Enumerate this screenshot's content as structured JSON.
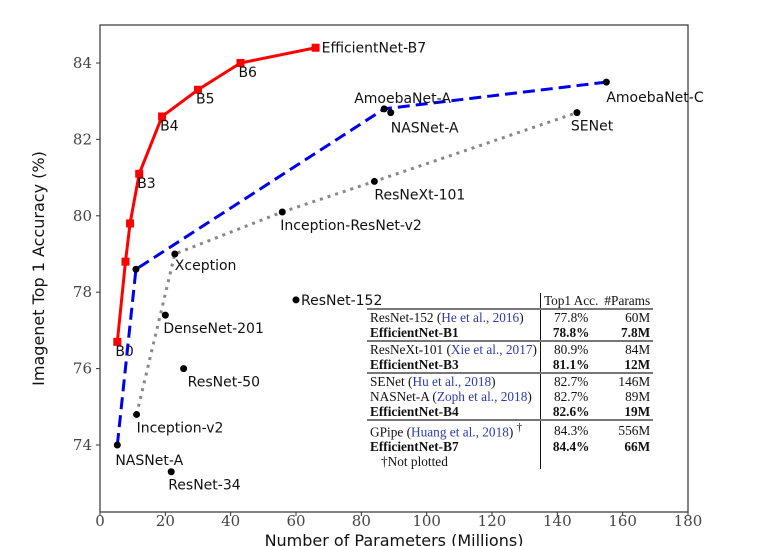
{
  "chart_data": {
    "type": "line",
    "xlabel": "Number of Parameters (Millions)",
    "ylabel": "Imagenet Top 1 Accuracy (%)",
    "xlim": [
      0,
      180
    ],
    "ylim": [
      72.3,
      84.95
    ],
    "xticks": [
      0,
      20,
      40,
      60,
      80,
      100,
      120,
      140,
      160,
      180
    ],
    "yticks": [
      74,
      76,
      78,
      80,
      82,
      84
    ],
    "grid": false,
    "series": [
      {
        "style": "solid",
        "color": "#ff0000",
        "marker": "square",
        "points": [
          {
            "x": 5.3,
            "y": 76.7,
            "label": "B0"
          },
          {
            "x": 7.8,
            "y": 78.8,
            "label": ""
          },
          {
            "x": 9.2,
            "y": 79.8,
            "label": ""
          },
          {
            "x": 12,
            "y": 81.1,
            "label": "B3"
          },
          {
            "x": 19,
            "y": 82.6,
            "label": "B4"
          },
          {
            "x": 30,
            "y": 83.3,
            "label": "B5"
          },
          {
            "x": 43,
            "y": 84.0,
            "label": "B6"
          },
          {
            "x": 66,
            "y": 84.4,
            "label": "EfficientNet-B7"
          }
        ]
      },
      {
        "style": "dashed",
        "color": "#0000ee",
        "marker": "circle",
        "points": [
          {
            "x": 5.3,
            "y": 74.0,
            "label": "NASNet-A"
          },
          {
            "x": 11,
            "y": 78.6,
            "label": ""
          },
          {
            "x": 87,
            "y": 82.8,
            "label": "AmoebaNet-A"
          },
          {
            "x": 155,
            "y": 83.5,
            "label": "AmoebaNet-C"
          }
        ]
      },
      {
        "style": "dotted",
        "color": "#888888",
        "marker": "circle",
        "points": [
          {
            "x": 11.2,
            "y": 74.8,
            "label": "Inception-v2"
          },
          {
            "x": 22.9,
            "y": 79.0,
            "label": "Xception"
          },
          {
            "x": 55.8,
            "y": 80.1,
            "label": "Inception-ResNet-v2"
          },
          {
            "x": 84,
            "y": 80.9,
            "label": "ResNeXt-101"
          },
          {
            "x": 146,
            "y": 82.7,
            "label": "SENet"
          }
        ]
      },
      {
        "style": "none",
        "color": "#000000",
        "marker": "circle",
        "points": [
          {
            "x": 89,
            "y": 82.7,
            "label": "NASNet-A"
          },
          {
            "x": 20,
            "y": 77.4,
            "label": "DenseNet-201"
          },
          {
            "x": 25.6,
            "y": 76.0,
            "label": "ResNet-50"
          },
          {
            "x": 60,
            "y": 77.8,
            "label": "ResNet-152"
          },
          {
            "x": 21.8,
            "y": 73.3,
            "label": "ResNet-34"
          }
        ]
      }
    ],
    "table": {
      "headers": [
        "",
        "Top1 Acc.",
        "#Params"
      ],
      "groups": [
        [
          {
            "model": "ResNet-152",
            "cite": "He et al., 2016",
            "acc": "77.8%",
            "params": "60M",
            "bold": false
          },
          {
            "model": "EfficientNet-B1",
            "cite": "",
            "acc": "78.8%",
            "params": "7.8M",
            "bold": true
          }
        ],
        [
          {
            "model": "ResNeXt-101",
            "cite": "Xie et al., 2017",
            "acc": "80.9%",
            "params": "84M",
            "bold": false
          },
          {
            "model": "EfficientNet-B3",
            "cite": "",
            "acc": "81.1%",
            "params": "12M",
            "bold": true
          }
        ],
        [
          {
            "model": "SENet",
            "cite": "Hu et al., 2018",
            "acc": "82.7%",
            "params": "146M",
            "bold": false
          },
          {
            "model": "NASNet-A",
            "cite": "Zoph et al., 2018",
            "acc": "82.7%",
            "params": "89M",
            "bold": false
          },
          {
            "model": "EfficientNet-B4",
            "cite": "",
            "acc": "82.6%",
            "params": "19M",
            "bold": true
          }
        ],
        [
          {
            "model": "GPipe",
            "cite": "Huang et al., 2018",
            "dagger": "†",
            "acc": "84.3%",
            "params": "556M",
            "bold": false
          },
          {
            "model": "EfficientNet-B7",
            "cite": "",
            "acc": "84.4%",
            "params": "66M",
            "bold": true
          }
        ]
      ],
      "footnote": "†Not plotted"
    }
  }
}
